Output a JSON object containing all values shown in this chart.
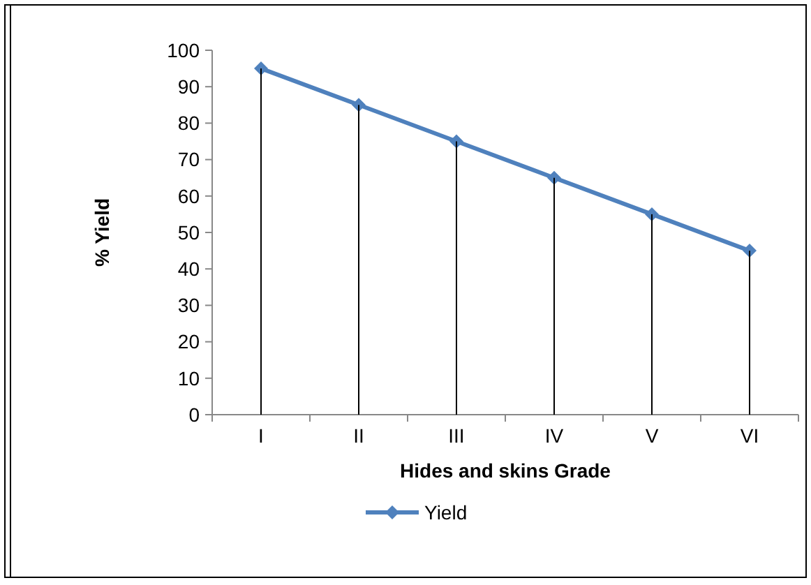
{
  "chart_data": {
    "type": "line",
    "xlabel": "Hides and skins Grade",
    "ylabel": "% Yield",
    "categories": [
      "I",
      "II",
      "III",
      "IV",
      "V",
      "VI"
    ],
    "series": [
      {
        "name": "Yield",
        "color": "#4f81bd",
        "values": [
          95,
          85,
          75,
          65,
          55,
          45
        ]
      },
      {
        "type": "bar",
        "color": "#000000",
        "values": [
          95,
          85,
          75,
          65,
          55,
          45
        ]
      }
    ],
    "ylim": [
      0,
      100
    ],
    "yticks": [
      0,
      10,
      20,
      30,
      40,
      50,
      60,
      70,
      80,
      90,
      100
    ],
    "grid": false,
    "legend": "bottom",
    "marker": "diamond",
    "line_style": "solid"
  }
}
